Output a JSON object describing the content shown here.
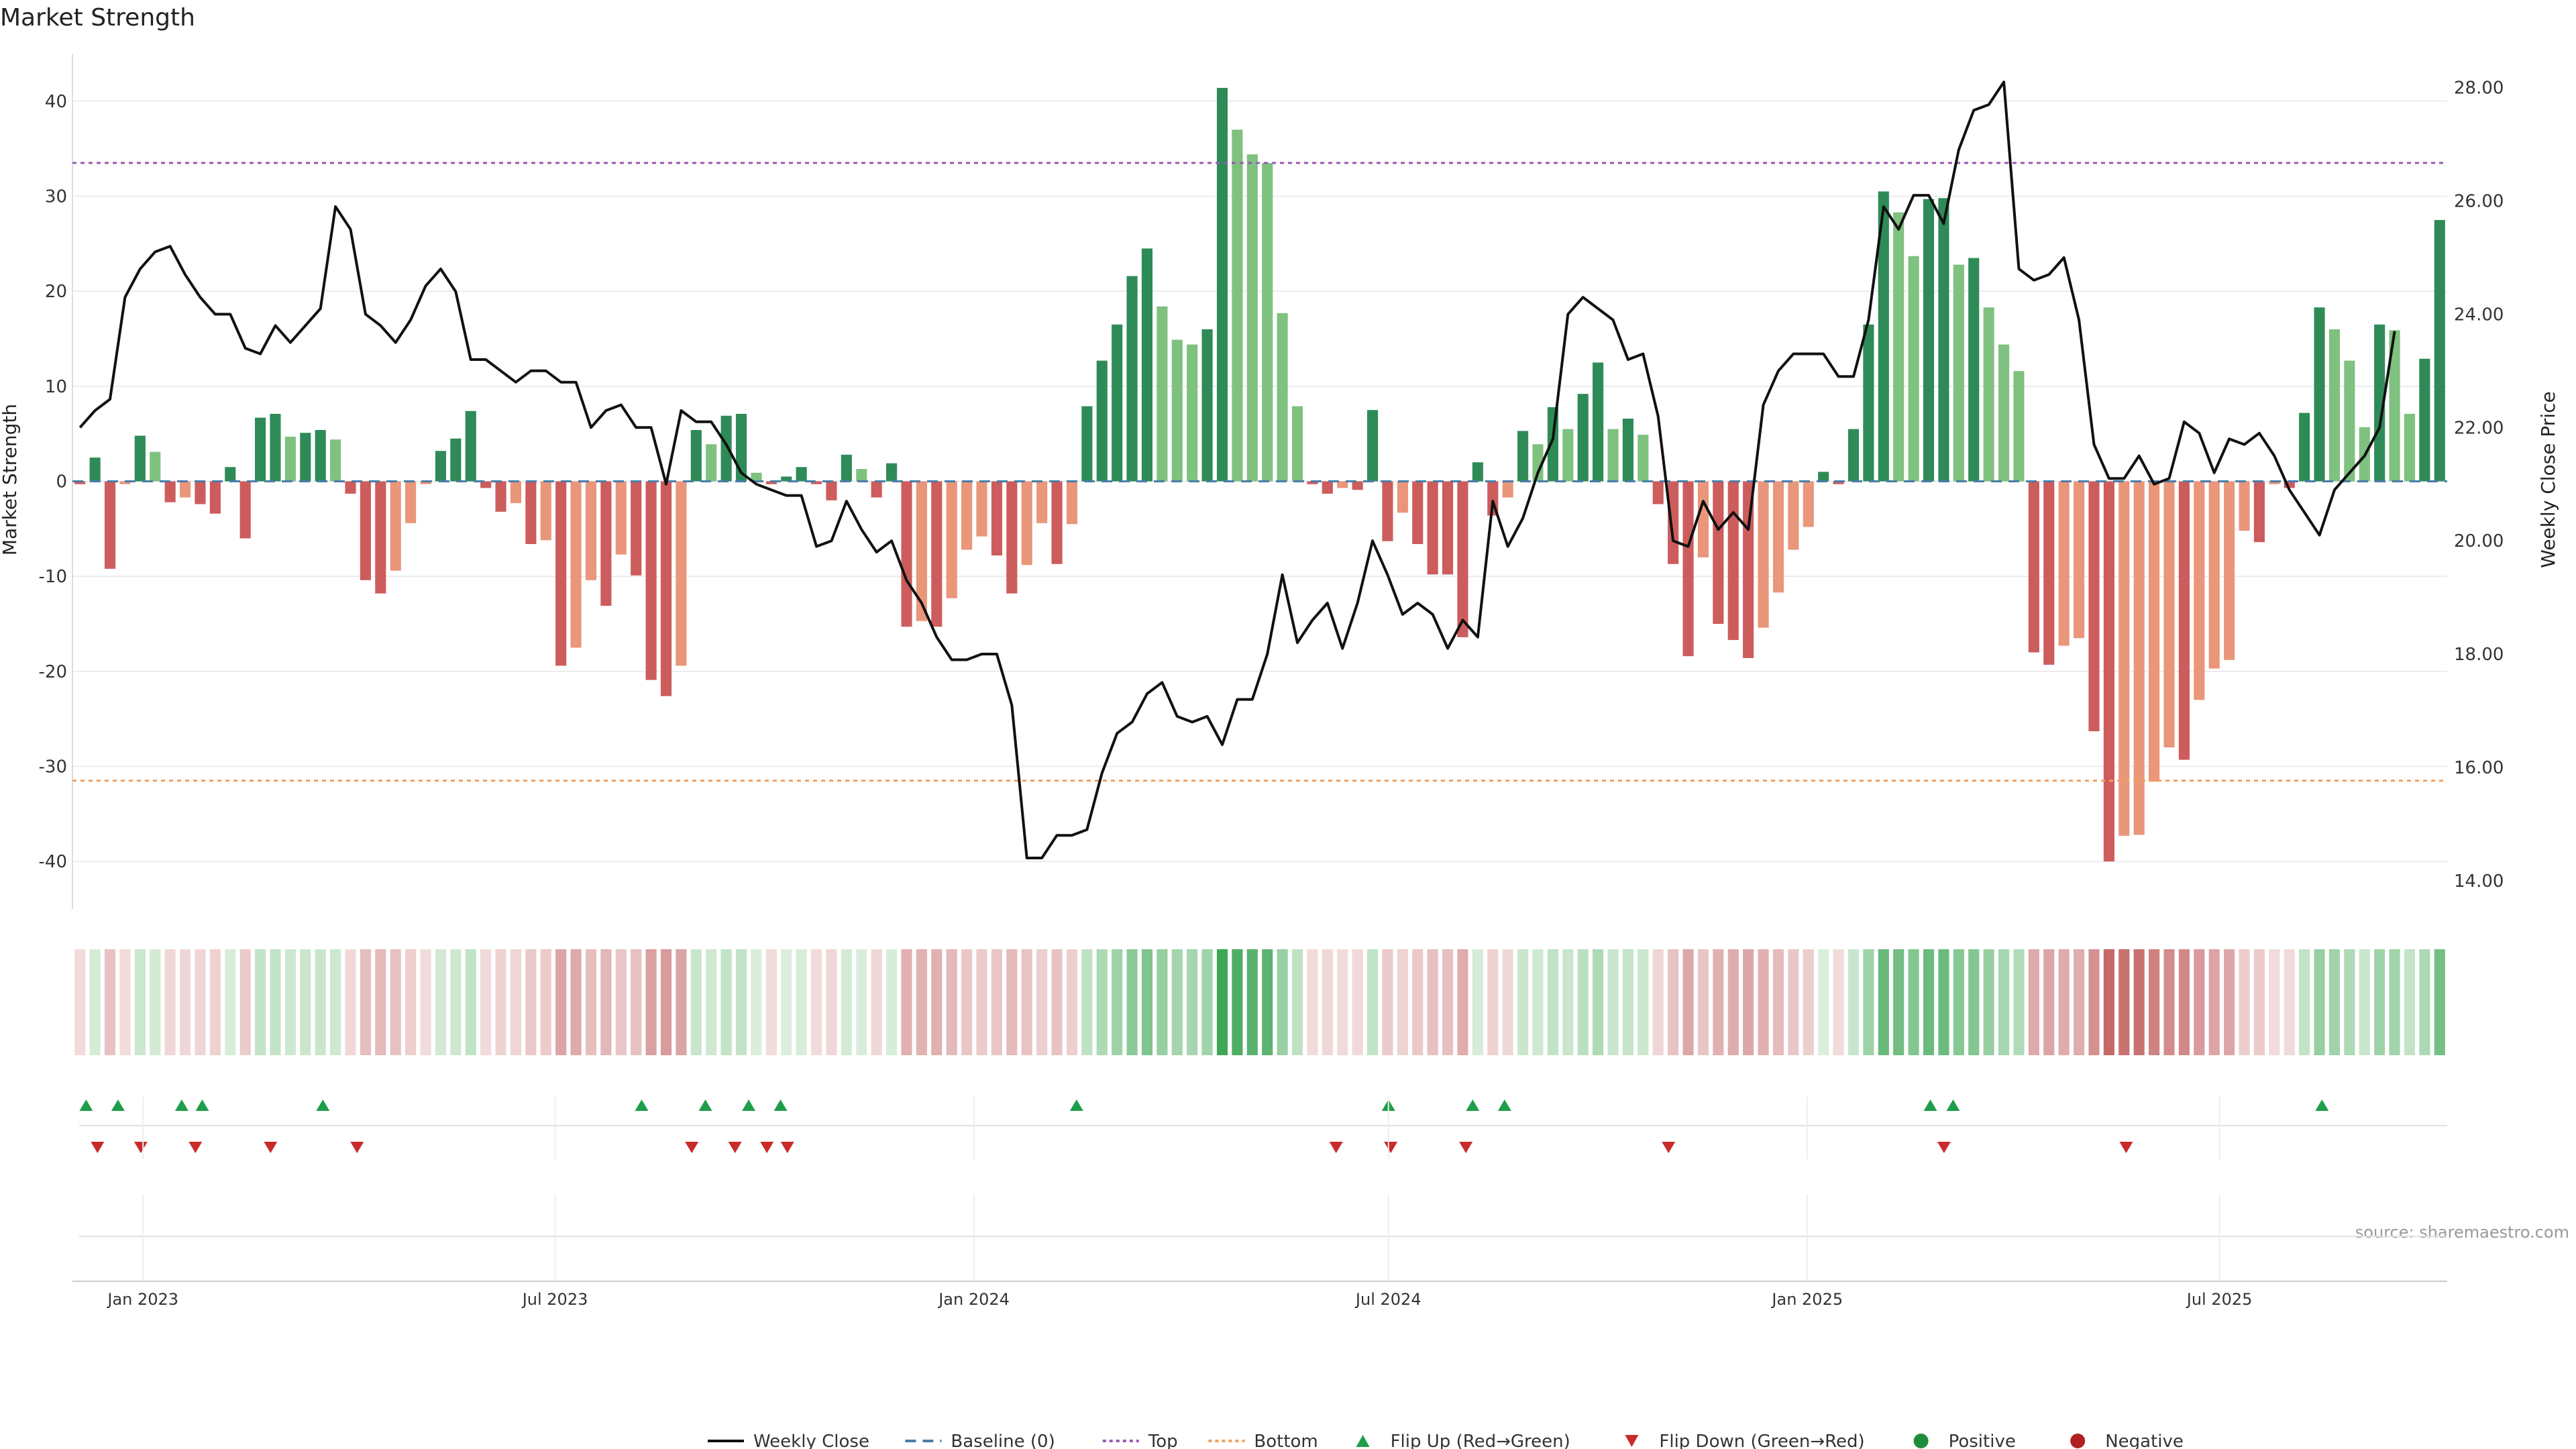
{
  "chart_data": {
    "type": "bar",
    "title": "Market Strength",
    "ylabel_left": "Market Strength",
    "ylabel_right": "Weekly Close Price",
    "source": "source: sharemaestro.com",
    "x_start_date": "2022-12-01",
    "x_end_date": "2025-10-09",
    "x_ticks": [
      {
        "date": "2023-01-01",
        "label": "Jan 2023"
      },
      {
        "date": "2023-07-01",
        "label": "Jul 2023"
      },
      {
        "date": "2024-01-01",
        "label": "Jan 2024"
      },
      {
        "date": "2024-07-01",
        "label": "Jul 2024"
      },
      {
        "date": "2025-01-01",
        "label": "Jan 2025"
      },
      {
        "date": "2025-07-01",
        "label": "Jul 2025"
      }
    ],
    "ylim_left": [
      -45,
      45
    ],
    "yticks_left": [
      40,
      30,
      20,
      10,
      0,
      -10,
      -20,
      -30,
      -40
    ],
    "ylim_right": [
      13.5,
      28.6
    ],
    "yticks_right": [
      "28.00",
      "26.00",
      "24.00",
      "22.00",
      "20.00",
      "18.00",
      "16.00",
      "14.00"
    ],
    "top_line": 33.5,
    "bottom_line": -31.5,
    "strength": [
      -0.3,
      2.5,
      -9.2,
      -0.3,
      4.8,
      3.1,
      -2.2,
      -1.7,
      -2.4,
      -3.4,
      1.5,
      -6,
      6.7,
      7.1,
      4.7,
      5.1,
      5.4,
      4.4,
      -1.3,
      -10.4,
      -11.8,
      -9.4,
      -4.4,
      -0.3,
      3.2,
      4.5,
      7.4,
      -0.7,
      -3.2,
      -2.3,
      -6.6,
      -6.2,
      -19.4,
      -17.5,
      -10.4,
      -13.1,
      -7.7,
      -9.9,
      -20.9,
      -22.6,
      -19.4,
      5.4,
      3.9,
      6.9,
      7.1,
      0.9,
      -0.3,
      0.5,
      1.5,
      -0.3,
      -2,
      2.8,
      1.3,
      -1.7,
      1.9,
      -15.3,
      -14.7,
      -15.3,
      -12.3,
      -7.2,
      -5.8,
      -7.8,
      -11.8,
      -8.8,
      -4.4,
      -8.7,
      -4.5,
      7.9,
      12.7,
      16.5,
      21.6,
      24.5,
      18.4,
      14.9,
      14.4,
      16,
      41.4,
      37,
      34.4,
      33.5,
      17.7,
      7.9,
      -0.3,
      -1.3,
      -0.7,
      -0.9,
      7.5,
      -6.3,
      -3.3,
      -6.6,
      -9.8,
      -9.8,
      -16.4,
      2,
      -3.6,
      -1.7,
      5.3,
      3.9,
      7.8,
      5.5,
      9.2,
      12.5,
      5.5,
      6.6,
      4.9,
      -2.4,
      -8.7,
      -18.4,
      -8,
      -15,
      -16.7,
      -18.6,
      -15.4,
      -11.7,
      -7.2,
      -4.8,
      1,
      -0.3,
      5.5,
      16.5,
      30.5,
      28.3,
      23.7,
      29.7,
      29.8,
      22.8,
      23.5,
      18.3,
      14.4,
      11.6,
      -18,
      -19.3,
      -17.3,
      -16.5,
      -26.3,
      -40,
      -37.3,
      -37.2,
      -31.6,
      -28,
      -29.3,
      -23,
      -19.7,
      -18.8,
      -5.2,
      -6.4,
      -0.3,
      -0.7,
      7.2,
      18.3,
      16,
      12.7,
      5.7,
      16.5,
      15.9,
      7.1,
      12.9,
      27.5
    ],
    "weekly_close": [
      22,
      22.3,
      22.5,
      24.3,
      24.8,
      25.1,
      25.2,
      24.7,
      24.3,
      24,
      24,
      23.4,
      23.3,
      23.8,
      23.5,
      23.8,
      24.1,
      25.9,
      25.5,
      24,
      23.8,
      23.5,
      23.9,
      24.5,
      24.8,
      24.4,
      23.2,
      23.2,
      23,
      22.8,
      23,
      23,
      22.8,
      22.8,
      22,
      22.3,
      22.4,
      22,
      22,
      21,
      22.3,
      22.1,
      22.1,
      21.7,
      21.2,
      21,
      20.9,
      20.8,
      20.8,
      19.9,
      20,
      20.7,
      20.2,
      19.8,
      20,
      19.3,
      18.9,
      18.3,
      17.9,
      17.9,
      18,
      18,
      17.1,
      14.4,
      14.4,
      14.8,
      14.8,
      14.9,
      15.9,
      16.6,
      16.8,
      17.3,
      17.5,
      16.9,
      16.8,
      16.9,
      16.4,
      17.2,
      17.2,
      18,
      19.4,
      18.2,
      18.6,
      18.9,
      18.1,
      18.9,
      20,
      19.4,
      18.7,
      18.9,
      18.7,
      18.1,
      18.6,
      18.3,
      20.7,
      19.9,
      20.4,
      21.2,
      21.8,
      24,
      24.3,
      24.1,
      23.9,
      23.2,
      23.3,
      22.2,
      20,
      19.9,
      20.7,
      20.2,
      20.5,
      20.2,
      22.4,
      23,
      23.3,
      23.3,
      23.3,
      22.9,
      22.9,
      23.9,
      25.9,
      25.5,
      26.1,
      26.1,
      25.6,
      26.9,
      27.6,
      27.7,
      28.1,
      24.8,
      24.6,
      24.7,
      25,
      23.9,
      21.7,
      21.1,
      21.1,
      21.5,
      21,
      21.1,
      22.1,
      21.9,
      21.2,
      21.8,
      21.7,
      21.9,
      21.5,
      20.9,
      20.5,
      20.1,
      20.9,
      21.2,
      21.5,
      22,
      23.7
    ],
    "mini_bands": [
      {
        "from": 0.0,
        "to": 0.027,
        "color": "#f0d8d6"
      },
      {
        "from": 0.027,
        "to": 0.035,
        "color": "#f0d8d6"
      }
    ],
    "flip_up_dates": [
      "2022-12-07",
      "2022-12-21",
      "2023-01-18",
      "2023-01-27",
      "2023-03-21",
      "2023-08-08",
      "2023-09-05",
      "2023-09-24",
      "2023-10-08",
      "2024-02-15",
      "2024-07-01",
      "2024-08-07",
      "2024-08-21",
      "2025-02-24",
      "2025-03-06",
      "2025-08-15"
    ],
    "flip_down_dates": [
      "2022-12-12",
      "2022-12-31",
      "2023-01-24",
      "2023-02-26",
      "2023-04-05",
      "2023-08-30",
      "2023-09-18",
      "2023-10-02",
      "2023-10-11",
      "2024-06-08",
      "2024-07-02",
      "2024-08-04",
      "2024-11-01",
      "2025-03-02",
      "2025-05-21"
    ],
    "legend": [
      {
        "label": "Weekly Close",
        "kind": "line",
        "color": "#111111"
      },
      {
        "label": "Baseline (0)",
        "kind": "dashed",
        "color": "#4a7ca8"
      },
      {
        "label": "Top",
        "kind": "dotted",
        "color": "#9b59b6"
      },
      {
        "label": "Bottom",
        "kind": "dotted",
        "color": "#f0a060"
      },
      {
        "label": "Flip Up (Red→Green)",
        "kind": "tri-up",
        "color": "#1e9e4a"
      },
      {
        "label": "Flip Down (Green→Red)",
        "kind": "tri-down",
        "color": "#c92a2a"
      },
      {
        "label": "Positive",
        "kind": "dot",
        "color": "#1e8c3a"
      },
      {
        "label": "Negative",
        "kind": "dot",
        "color": "#b02020"
      }
    ],
    "colors": {
      "pos_strong": "#2e8b57",
      "pos_weak": "#7fc17f",
      "neg_strong": "#cd5c5c",
      "neg_weak": "#e9967a",
      "price": "#111111"
    }
  }
}
